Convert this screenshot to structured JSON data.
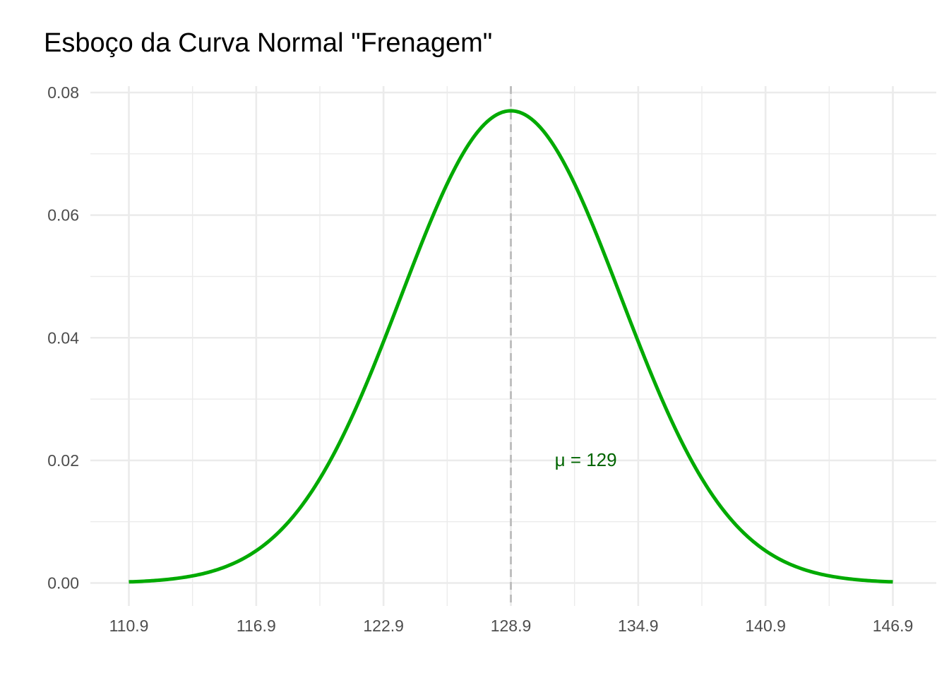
{
  "chart_data": {
    "type": "line",
    "title": "Esboço da Curva Normal \"Frenagem\"",
    "xlabel": "",
    "ylabel": "",
    "xlim": [
      110.9,
      146.9
    ],
    "ylim": [
      0,
      0.08
    ],
    "x_ticks": [
      "110.9",
      "116.9",
      "122.9",
      "128.9",
      "134.9",
      "140.9",
      "146.9"
    ],
    "y_ticks": [
      "0.00",
      "0.02",
      "0.04",
      "0.06",
      "0.08"
    ],
    "grid": true,
    "distribution": {
      "mean": 128.9,
      "sd": 5.18
    },
    "series": [
      {
        "color": "#00AA00",
        "x": [
          110.9,
          112.9,
          114.9,
          116.9,
          118.9,
          120.9,
          122.9,
          124.9,
          126.9,
          128.9,
          130.9,
          132.9,
          134.9,
          136.9,
          138.9,
          140.9,
          142.9,
          144.9,
          146.9
        ],
        "y": [
          0.0002,
          0.0006,
          0.002,
          0.0053,
          0.0121,
          0.0231,
          0.0394,
          0.0567,
          0.0713,
          0.077,
          0.0713,
          0.0567,
          0.0394,
          0.0231,
          0.0121,
          0.0053,
          0.002,
          0.0006,
          0.0002
        ]
      }
    ],
    "reference_line": {
      "x": 128.9,
      "style": "dashed",
      "color": "#bfbfbf"
    },
    "annotation": {
      "text": "μ = 129",
      "x": 131.1,
      "y": 0.02,
      "color": "#006400"
    }
  }
}
